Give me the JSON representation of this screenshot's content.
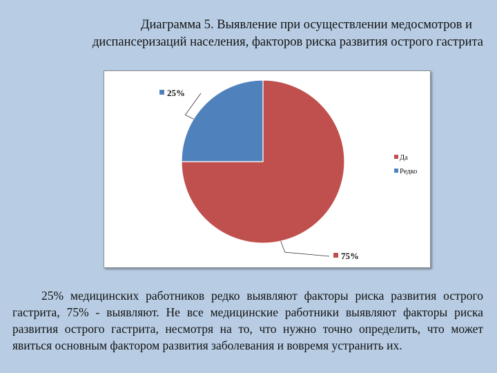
{
  "title_line1": "Диаграмма 5. Выявление при осуществлении медосмотров и",
  "title_line2": "диспансеризаций населения, факторов риска развития острого гастрита",
  "paragraph": "25% медицинских работников редко выявляют факторы риска развития острого гастрита, 75% - выявляют. Не все медицинские работники выявляют факторы риска развития острого гастрита, несмотря на то, что нужно точно определить, что может явиться основным фактором развития заболевания и вовремя устранить их.",
  "colors": {
    "Да": "#c0504d",
    "Редко": "#4f81bd"
  },
  "chart_data": {
    "type": "pie",
    "categories": [
      "Да",
      "Редко"
    ],
    "values": [
      75,
      25
    ],
    "data_labels": [
      "75%",
      "25%"
    ],
    "legend": [
      "Да",
      "Редко"
    ],
    "legend_position": "right",
    "start_angle": "12 o'clock, clockwise"
  }
}
